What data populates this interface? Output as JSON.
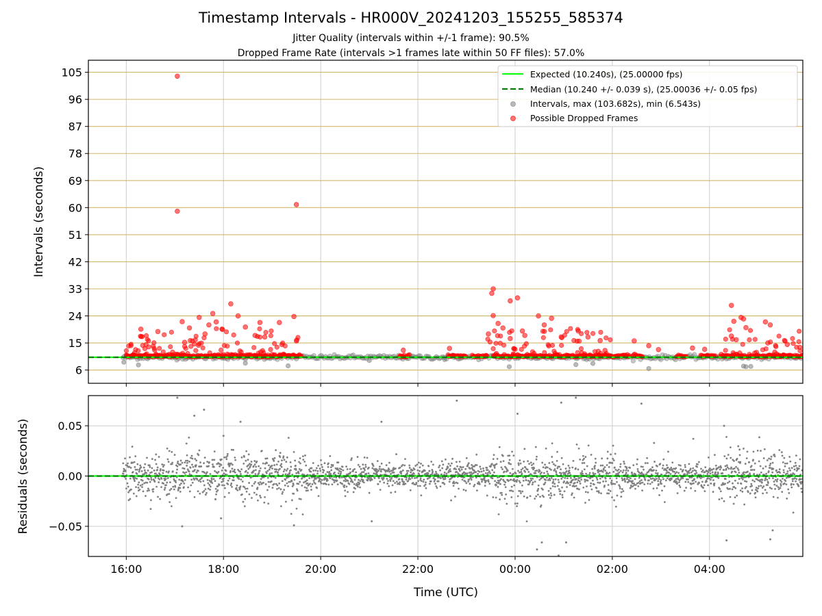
{
  "header": {
    "title": "Timestamp Intervals - HR000V_20241203_155255_585374",
    "subtitle_1": "Jitter Quality (intervals within +/-1 frame): 90.5%",
    "subtitle_2": "Dropped Frame Rate (intervals >1 frames late within 50 FF files): 57.0%"
  },
  "colors": {
    "expected": "#00ff00",
    "median": "#008000",
    "intervals": "#808080",
    "dropped": "#ff0000",
    "top_grid": "#d2b76a",
    "grid": "#cccccc"
  },
  "chart_data": [
    {
      "type": "scatter",
      "ylabel": "Intervals (seconds)",
      "y_ticks": [
        "105",
        "96",
        "87",
        "78",
        "69",
        "60",
        "51",
        "42",
        "33",
        "24",
        "15",
        "6"
      ],
      "y_tick_values": [
        105,
        96,
        87,
        78,
        69,
        60,
        51,
        42,
        33,
        24,
        15,
        6
      ],
      "ylim": [
        1.6,
        109
      ],
      "x_range_hours": [
        15.22,
        29.92
      ],
      "legend": {
        "position": "top-right",
        "entries": [
          "Expected (10.240s), (25.00000 fps)",
          "Median (10.240 +/- 0.039 s), (25.00036 +/- 0.05 fps)",
          "Intervals, max (103.682s), min (6.543s)",
          "Possible Dropped Frames"
        ]
      },
      "expected_interval": 10.24,
      "median_interval": 10.24,
      "max_interval": 103.682,
      "min_interval": 6.543,
      "dropped_outliers": [
        [
          17.05,
          103.7
        ],
        [
          17.05,
          58.8
        ],
        [
          19.5,
          61.0
        ],
        [
          18.15,
          28.0
        ],
        [
          17.78,
          24.8
        ],
        [
          17.5,
          23.5
        ],
        [
          17.85,
          22.0
        ],
        [
          18.3,
          24.0
        ],
        [
          18.75,
          21.8
        ],
        [
          17.15,
          22.1
        ],
        [
          17.7,
          21.0
        ],
        [
          19.45,
          23.8
        ],
        [
          19.15,
          21.8
        ],
        [
          18.45,
          20.3
        ],
        [
          17.98,
          19.5
        ],
        [
          17.3,
          20.0
        ],
        [
          16.3,
          19.6
        ],
        [
          16.65,
          18.8
        ],
        [
          18.65,
          17.5
        ],
        [
          18.85,
          17.0
        ],
        [
          17.62,
          18.0
        ],
        [
          19.5,
          15.7
        ],
        [
          17.2,
          15.2
        ],
        [
          23.55,
          33.0
        ],
        [
          23.52,
          31.5
        ],
        [
          23.9,
          29.0
        ],
        [
          24.05,
          30.0
        ],
        [
          24.48,
          24.0
        ],
        [
          24.75,
          23.2
        ],
        [
          23.55,
          24.1
        ],
        [
          23.65,
          21.5
        ],
        [
          23.75,
          20.0
        ],
        [
          24.15,
          19.0
        ],
        [
          24.2,
          17.5
        ],
        [
          23.45,
          18.0
        ],
        [
          24.6,
          21.0
        ],
        [
          24.95,
          17.0
        ],
        [
          25.3,
          19.0
        ],
        [
          25.5,
          17.0
        ],
        [
          25.75,
          15.8
        ],
        [
          25.85,
          12.5
        ],
        [
          23.9,
          16.5
        ],
        [
          26.45,
          15.7
        ],
        [
          26.75,
          14.1
        ],
        [
          28.45,
          27.5
        ],
        [
          28.5,
          22.2
        ],
        [
          28.65,
          23.5
        ],
        [
          28.7,
          23.0
        ],
        [
          28.75,
          20.1
        ],
        [
          28.45,
          17.3
        ],
        [
          28.55,
          16.1
        ],
        [
          29.15,
          22.0
        ],
        [
          29.25,
          21.0
        ],
        [
          29.2,
          15.0
        ],
        [
          29.6,
          14.5
        ],
        [
          22.65,
          13.2
        ],
        [
          21.7,
          12.6
        ],
        [
          26.95,
          12.8
        ],
        [
          27.65,
          13.3
        ],
        [
          27.9,
          12.9
        ]
      ],
      "dropped_band_segments": [
        [
          16.0,
          19.6
        ],
        [
          21.62,
          21.82
        ],
        [
          22.62,
          22.98
        ],
        [
          23.12,
          23.42
        ],
        [
          23.57,
          26.35
        ],
        [
          26.42,
          26.62
        ],
        [
          27.32,
          27.52
        ],
        [
          27.82,
          28.12
        ],
        [
          28.22,
          29.92
        ]
      ],
      "gray_lows": [
        [
          15.95,
          8.6
        ],
        [
          16.25,
          7.7
        ],
        [
          18.45,
          8.3
        ],
        [
          19.33,
          7.4
        ],
        [
          23.88,
          7.1
        ],
        [
          25.25,
          7.8
        ],
        [
          25.6,
          8.2
        ],
        [
          26.75,
          6.5
        ],
        [
          28.7,
          7.3
        ],
        [
          28.75,
          7.1
        ],
        [
          28.85,
          7.2
        ],
        [
          22.55,
          9.5
        ],
        [
          21.0,
          9.2
        ]
      ]
    },
    {
      "type": "scatter",
      "xlabel": "Time (UTC)",
      "ylabel": "Residuals (seconds)",
      "y_ticks": [
        "0.05",
        "0.00",
        "−0.05"
      ],
      "y_tick_values": [
        0.05,
        0.0,
        -0.05
      ],
      "ylim": [
        -0.08,
        0.08
      ],
      "x_ticks": [
        "16:00",
        "18:00",
        "20:00",
        "22:00",
        "00:00",
        "02:00",
        "04:00"
      ],
      "x_tick_hours": [
        16,
        18,
        20,
        22,
        24,
        26,
        28
      ],
      "x_range_hours": [
        15.22,
        29.92
      ],
      "residual_start_hour": 15.93,
      "residual_spread_sd": 0.0085,
      "notable_residuals": [
        [
          17.05,
          0.078
        ],
        [
          17.4,
          0.06
        ],
        [
          17.6,
          0.066
        ],
        [
          18.0,
          0.04
        ],
        [
          18.35,
          0.054
        ],
        [
          21.25,
          0.054
        ],
        [
          22.8,
          0.075
        ],
        [
          24.05,
          0.062
        ],
        [
          24.95,
          0.073
        ],
        [
          25.25,
          0.078
        ],
        [
          26.6,
          0.072
        ],
        [
          28.3,
          0.05
        ],
        [
          17.15,
          -0.05
        ],
        [
          17.95,
          -0.042
        ],
        [
          19.45,
          -0.049
        ],
        [
          21.05,
          -0.045
        ],
        [
          24.45,
          -0.073
        ],
        [
          24.55,
          -0.066
        ],
        [
          25.05,
          -0.066
        ],
        [
          28.35,
          -0.064
        ],
        [
          29.3,
          -0.054
        ],
        [
          29.25,
          -0.063
        ]
      ]
    }
  ]
}
